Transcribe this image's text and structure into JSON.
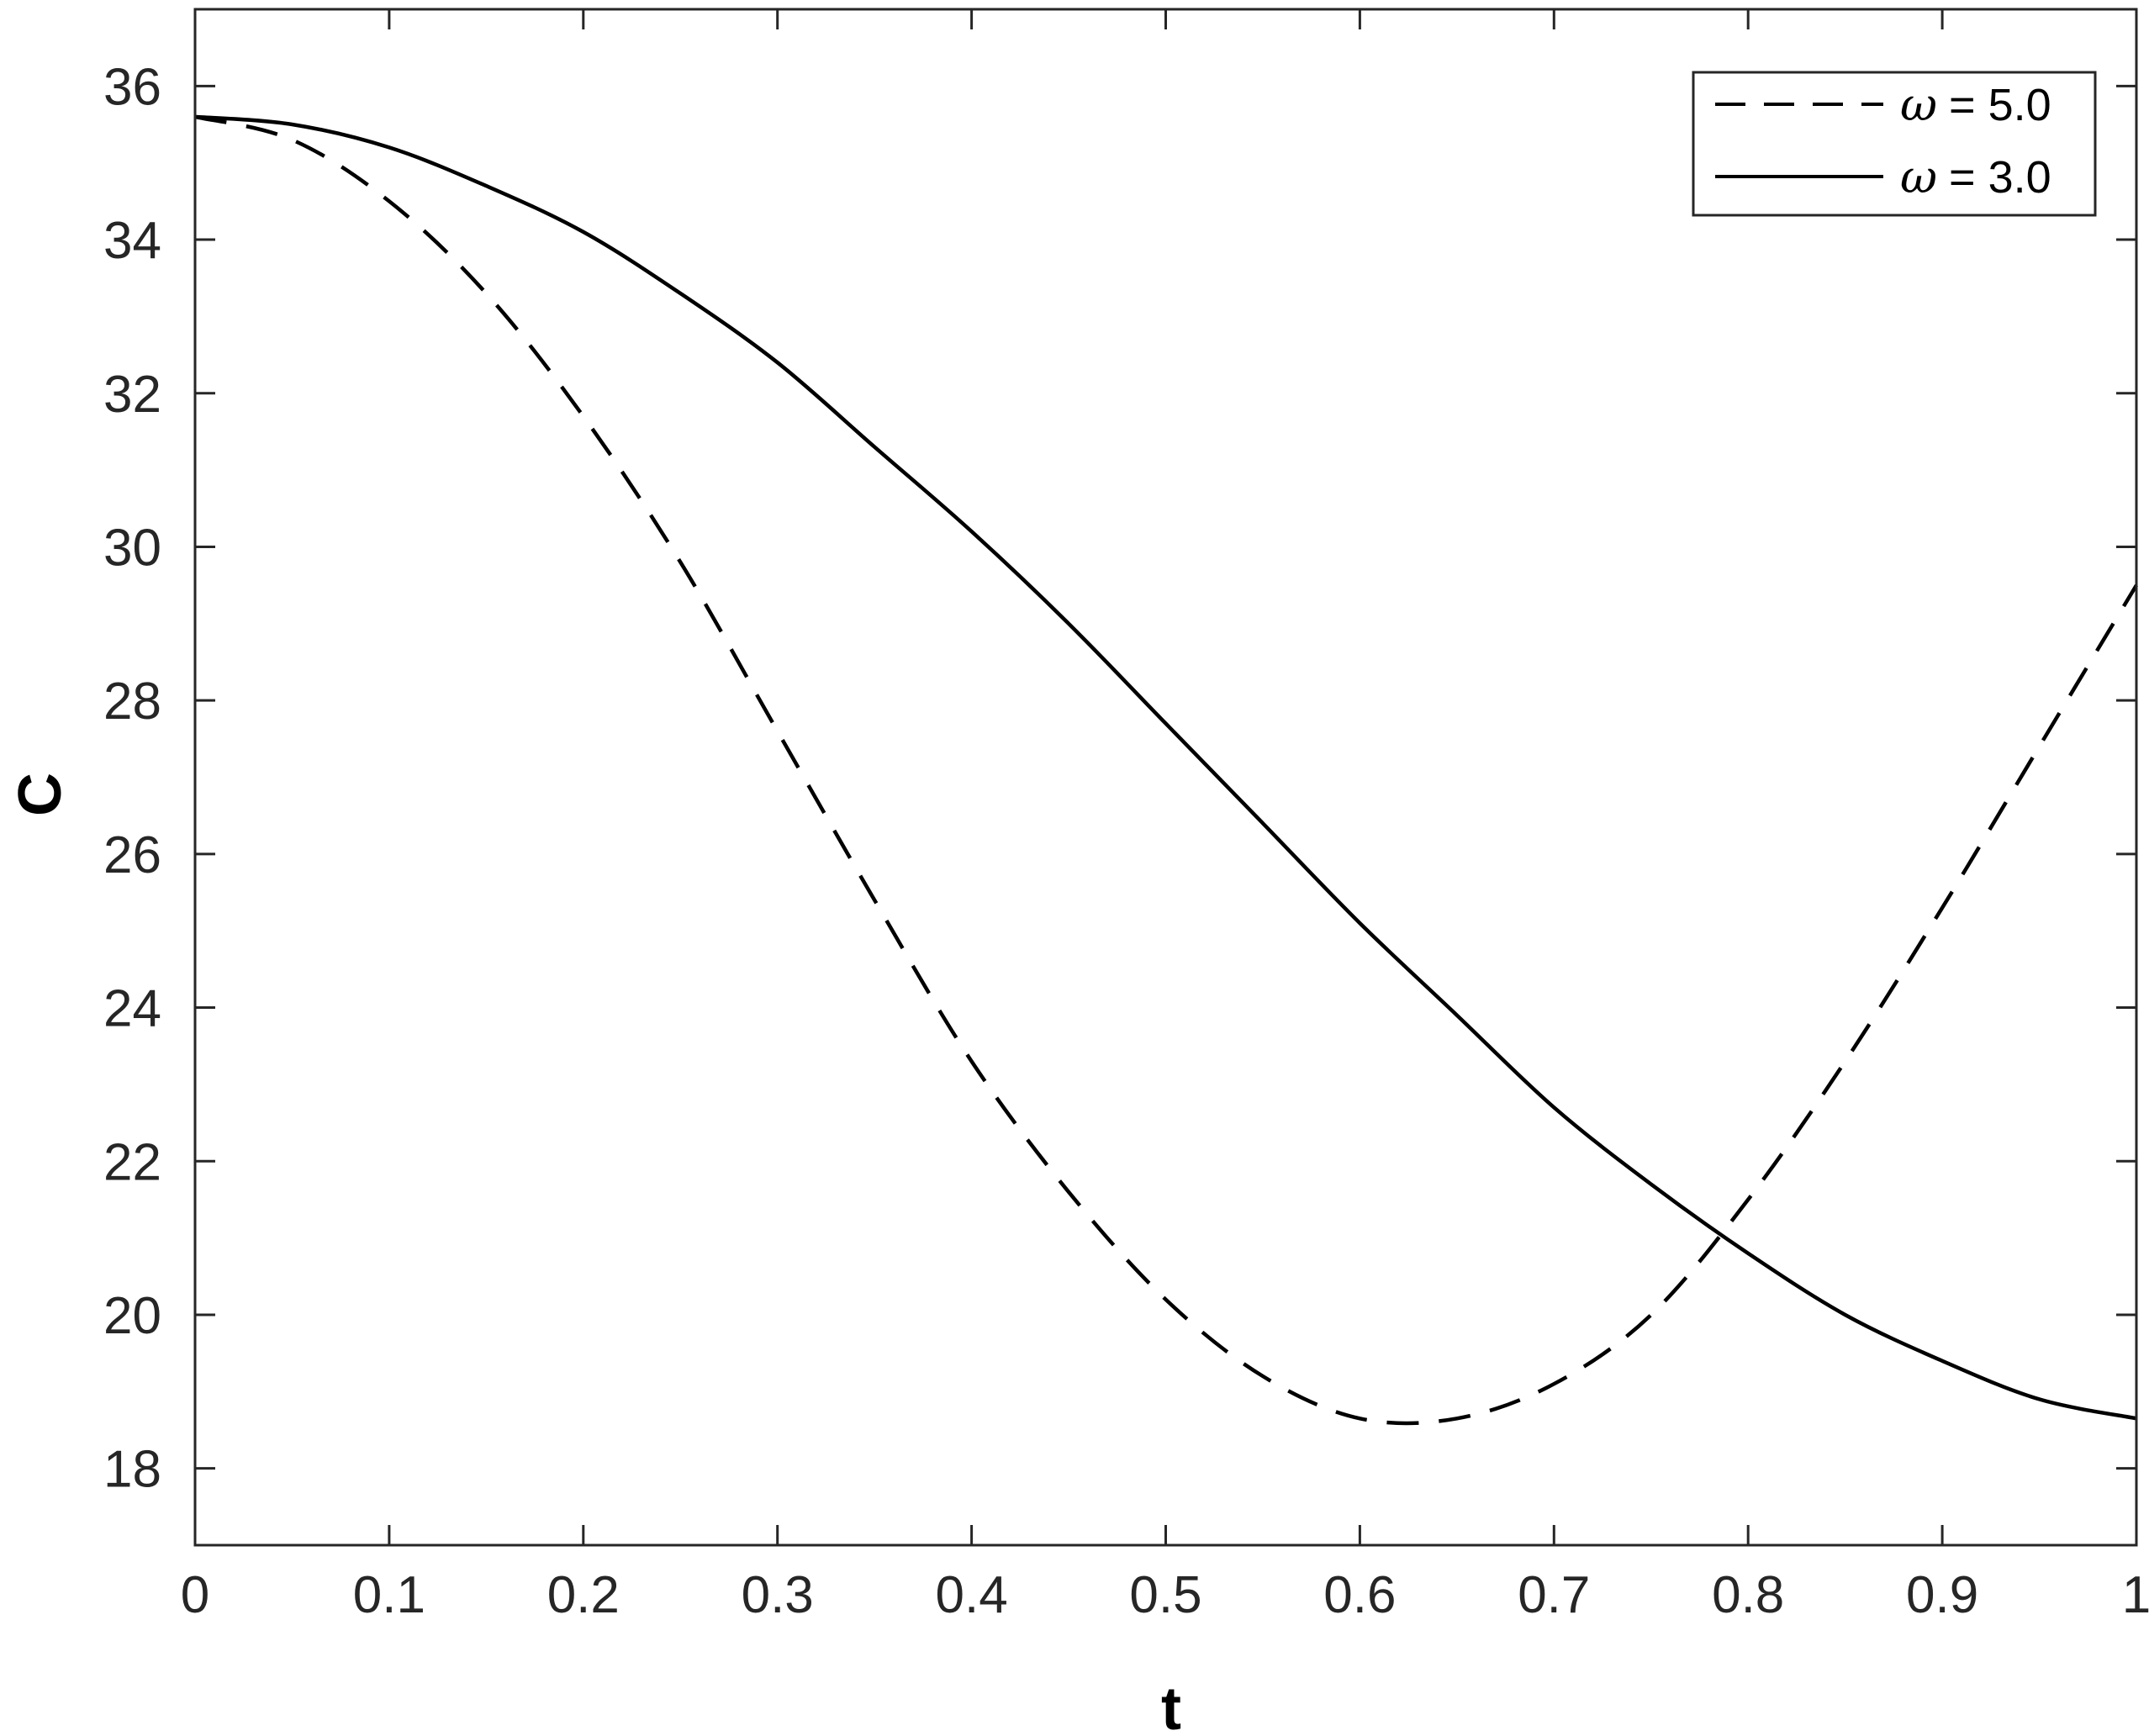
{
  "chart_data": {
    "type": "line",
    "xlabel": "t",
    "ylabel": "C",
    "xlim": [
      0,
      1
    ],
    "ylim": [
      17,
      37
    ],
    "xticks": [
      0,
      0.1,
      0.2,
      0.3,
      0.4,
      0.5,
      0.6,
      0.7,
      0.8,
      0.9,
      1
    ],
    "xtick_labels": [
      "0",
      "0.1",
      "0.2",
      "0.3",
      "0.4",
      "0.5",
      "0.6",
      "0.7",
      "0.8",
      "0.9",
      "1"
    ],
    "yticks": [
      18,
      20,
      22,
      24,
      26,
      28,
      30,
      32,
      34,
      36
    ],
    "ytick_labels": [
      "18",
      "20",
      "22",
      "24",
      "26",
      "28",
      "30",
      "32",
      "34",
      "36"
    ],
    "grid": false,
    "legend_position": "top-right",
    "series": [
      {
        "name": "ω = 5.0",
        "legend_symbol": "ω",
        "legend_value": "= 5.0",
        "style": "dashed",
        "color": "#000000",
        "x": [
          0,
          0.05,
          0.1,
          0.15,
          0.2,
          0.25,
          0.3,
          0.35,
          0.4,
          0.45,
          0.5,
          0.55,
          0.6,
          0.65,
          0.7,
          0.75,
          0.8,
          0.85,
          0.9,
          0.95,
          1.0
        ],
        "y": [
          35.6,
          35.3,
          34.5,
          33.3,
          31.7,
          29.8,
          27.6,
          25.4,
          23.3,
          21.6,
          20.2,
          19.2,
          18.65,
          18.65,
          19.1,
          20.0,
          21.5,
          23.3,
          25.3,
          27.4,
          29.5
        ]
      },
      {
        "name": "ω = 3.0",
        "legend_symbol": "ω",
        "legend_value": "= 3.0",
        "style": "solid",
        "color": "#000000",
        "x": [
          0,
          0.05,
          0.1,
          0.15,
          0.2,
          0.25,
          0.3,
          0.35,
          0.4,
          0.45,
          0.5,
          0.55,
          0.6,
          0.65,
          0.7,
          0.75,
          0.8,
          0.85,
          0.9,
          0.95,
          1.0
        ],
        "y": [
          35.6,
          35.5,
          35.2,
          34.7,
          34.1,
          33.3,
          32.4,
          31.3,
          30.2,
          29.0,
          27.7,
          26.4,
          25.1,
          23.9,
          22.7,
          21.7,
          20.8,
          20.0,
          19.4,
          18.9,
          18.65
        ]
      }
    ]
  }
}
